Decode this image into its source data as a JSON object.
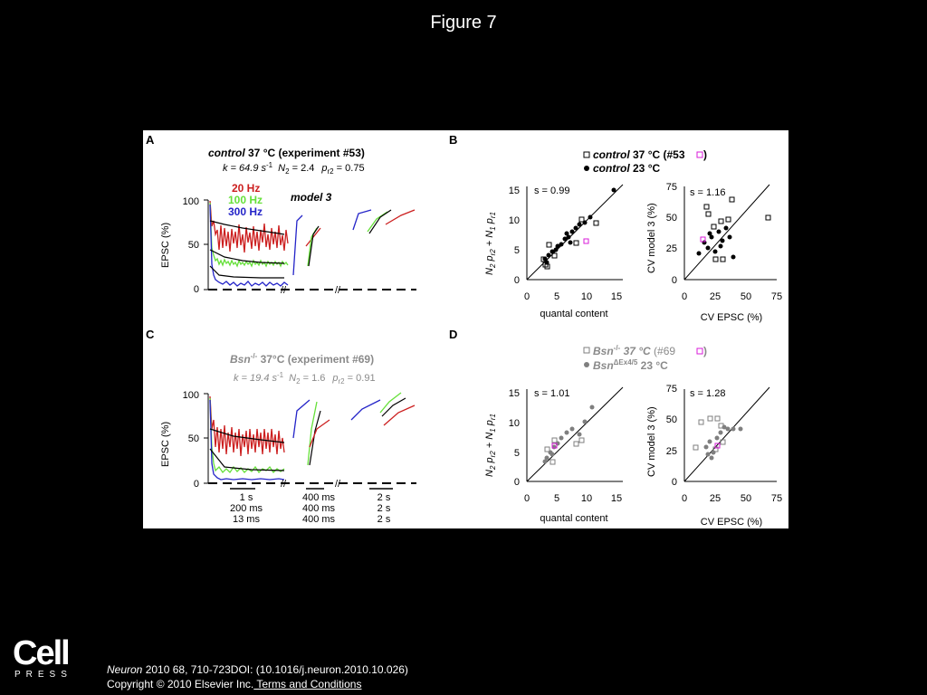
{
  "slide": {
    "title": "Figure 7"
  },
  "panels": {
    "A": {
      "label": "A",
      "title_italic": "control",
      "title_rest": " 37 °C (experiment #53)",
      "params": {
        "k": "k = 64.9 s",
        "k_exp": "-1",
        "n2": "N",
        "n2_sub": "2",
        "n2_val": " = 2.4",
        "p": "p",
        "p_sub": "r2",
        "p_val": " = 0.75"
      },
      "legend": [
        "20 Hz",
        "100 Hz",
        "300 Hz"
      ],
      "model": "model 3",
      "ylabel": "EPSC (%)",
      "yticks": [
        "100",
        "50",
        "0"
      ]
    },
    "B": {
      "label": "B",
      "legend": [
        {
          "italic": "control",
          "text": " 37 °C (#53",
          "close": ")"
        },
        {
          "italic": "control",
          "text": " 23 °C"
        }
      ],
      "left_plot": {
        "s": "s = 0.99",
        "xlabel": "quantal content",
        "ylabel_parts": [
          "N",
          "2",
          " p",
          "r2",
          " + N",
          "1",
          " p",
          "r1"
        ],
        "xticks": [
          "0",
          "5",
          "10",
          "15"
        ],
        "yticks": [
          "15",
          "10",
          "5",
          "0"
        ]
      },
      "right_plot": {
        "s": "s = 1.16",
        "xlabel": "CV EPSC (%)",
        "ylabel": "CV model 3 (%)",
        "xticks": [
          "0",
          "25",
          "50",
          "75"
        ],
        "yticks": [
          "75",
          "50",
          "25",
          "0"
        ]
      }
    },
    "C": {
      "label": "C",
      "title_italic": "Bsn",
      "title_sup": "-/-",
      "title_rest": " 37°C (experiment #69)",
      "params": {
        "k": "k = 19.4 s",
        "k_exp": "-1",
        "n2": "N",
        "n2_sub": "2",
        "n2_val": " = 1.6",
        "p": "p",
        "p_sub": "r2",
        "p_val": " = 0.91"
      },
      "ylabel": "EPSC (%)",
      "yticks": [
        "100",
        "50",
        "0"
      ],
      "time_labels": [
        [
          "1 s",
          "200 ms",
          "13 ms"
        ],
        [
          "400 ms",
          "400 ms",
          "400 ms"
        ],
        [
          "2 s",
          "2 s",
          "2 s"
        ]
      ]
    },
    "D": {
      "label": "D",
      "legend": [
        {
          "italic": "Bsn",
          "sup": "-/-",
          "text": "  37 °C",
          "extra": "  (#69",
          "close": " )"
        },
        {
          "italic": "Bsn",
          "sup": "ΔEx4/5",
          "text": "  23 °C"
        }
      ],
      "left_plot": {
        "s": "s = 1.01",
        "xlabel": "quantal content",
        "ylabel_parts": [
          "N",
          "2",
          " p",
          "r2",
          " + N",
          "1",
          " p",
          "r1"
        ],
        "xticks": [
          "0",
          "5",
          "10",
          "15"
        ],
        "yticks": [
          "15",
          "10",
          "5",
          "0"
        ]
      },
      "right_plot": {
        "s": "s = 1.28",
        "xlabel": "CV EPSC (%)",
        "ylabel": "CV model 3 (%)",
        "xticks": [
          "0",
          "25",
          "50",
          "75"
        ],
        "yticks": [
          "75",
          "50",
          "25",
          "0"
        ]
      }
    }
  },
  "colors": {
    "red": "#cc1f1f",
    "green": "#66e03a",
    "blue": "#2424c8",
    "magenta": "#d81bd8",
    "gray": "#7f7f7f"
  },
  "logo": {
    "main": "Cell",
    "sub": "PRESS"
  },
  "citation": {
    "journal": "Neuron",
    "rest": " 2010 68, 710-723DOI: (10.1016/j.neuron.2010.10.026)",
    "copyright": "Copyright © 2010 Elsevier Inc.",
    "link": " Terms and Conditions"
  }
}
